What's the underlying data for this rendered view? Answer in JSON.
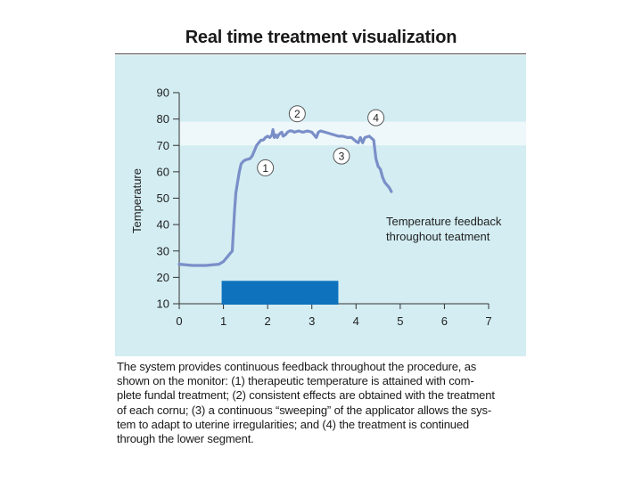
{
  "chart_data": {
    "type": "line",
    "title": "Real time treatment visualization",
    "xlabel": "",
    "ylabel": "Temperature",
    "xlim": [
      0,
      7
    ],
    "ylim": [
      10,
      90
    ],
    "x_ticks": [
      "0",
      "1",
      "2",
      "3",
      "4",
      "5",
      "6",
      "7"
    ],
    "y_ticks": [
      "10",
      "20",
      "30",
      "40",
      "50",
      "60",
      "70",
      "80",
      "90"
    ],
    "target_band": [
      70,
      79
    ],
    "treatment_bar": {
      "x_start": 1.0,
      "x_end": 3.6,
      "y_start": 10,
      "y_end": 18
    },
    "series": [
      {
        "name": "Temperature feedback throughout teatment",
        "x": [
          0,
          0.3,
          0.6,
          0.9,
          1.0,
          1.05,
          1.1,
          1.15,
          1.2,
          1.25,
          1.28,
          1.32,
          1.36,
          1.4,
          1.45,
          1.5,
          1.6,
          1.65,
          1.7,
          1.75,
          1.8,
          1.85,
          1.9,
          1.95,
          2.0,
          2.05,
          2.1,
          2.12,
          2.15,
          2.18,
          2.22,
          2.25,
          2.28,
          2.32,
          2.35,
          2.4,
          2.45,
          2.5,
          2.55,
          2.6,
          2.7,
          2.8,
          2.9,
          3.0,
          3.05,
          3.1,
          3.15,
          3.2,
          3.3,
          3.4,
          3.5,
          3.6,
          3.7,
          3.8,
          3.9,
          4.0,
          4.05,
          4.1,
          4.15,
          4.2,
          4.3,
          4.4,
          4.45,
          4.5,
          4.55,
          4.6,
          4.65,
          4.7,
          4.75,
          4.8
        ],
        "y": [
          25,
          24.5,
          24.5,
          25,
          26,
          27,
          28,
          29,
          30,
          45,
          52,
          56,
          60,
          63,
          64,
          64.5,
          65,
          66,
          68,
          70,
          71,
          72,
          72,
          73,
          73.5,
          73,
          74,
          76,
          73,
          74,
          73,
          74,
          74.5,
          75,
          73.5,
          74,
          75,
          75.5,
          75.5,
          75,
          75.5,
          75,
          75.5,
          75,
          74,
          73,
          75,
          75.5,
          75,
          74.5,
          74,
          73.5,
          73.5,
          73,
          73,
          71.5,
          71,
          73,
          71,
          73,
          73.5,
          72,
          65,
          62,
          61,
          58,
          56,
          55,
          54,
          52.5
        ]
      }
    ],
    "annotations": [
      {
        "label": "1",
        "x": 1.95,
        "y": 61.5
      },
      {
        "label": "2",
        "x": 2.67,
        "y": 82
      },
      {
        "label": "3",
        "x": 3.67,
        "y": 66
      },
      {
        "label": "4",
        "x": 4.45,
        "y": 80.5
      }
    ],
    "legend_text": [
      "Temperature feedback",
      "throughout teatment"
    ]
  },
  "caption_lines": [
    "The system provides continuous feedback throughout the procedure, as",
    "shown on the monitor: (1) therapeutic temperature is attained with com-",
    "plete fundal treatment; (2) consistent effects are obtained with the treatment",
    "of each cornu; (3) a continuous “sweeping” of the applicator allows the sys-",
    "tem to adapt to uterine irregularities; and (4) the treatment is continued",
    "through the lower segment."
  ],
  "colors": {
    "panel_bg": "#d3edf2",
    "band": "#eef8fa",
    "line": "#7a8fc8",
    "bar": "#0f72bd",
    "axis": "#333333"
  }
}
